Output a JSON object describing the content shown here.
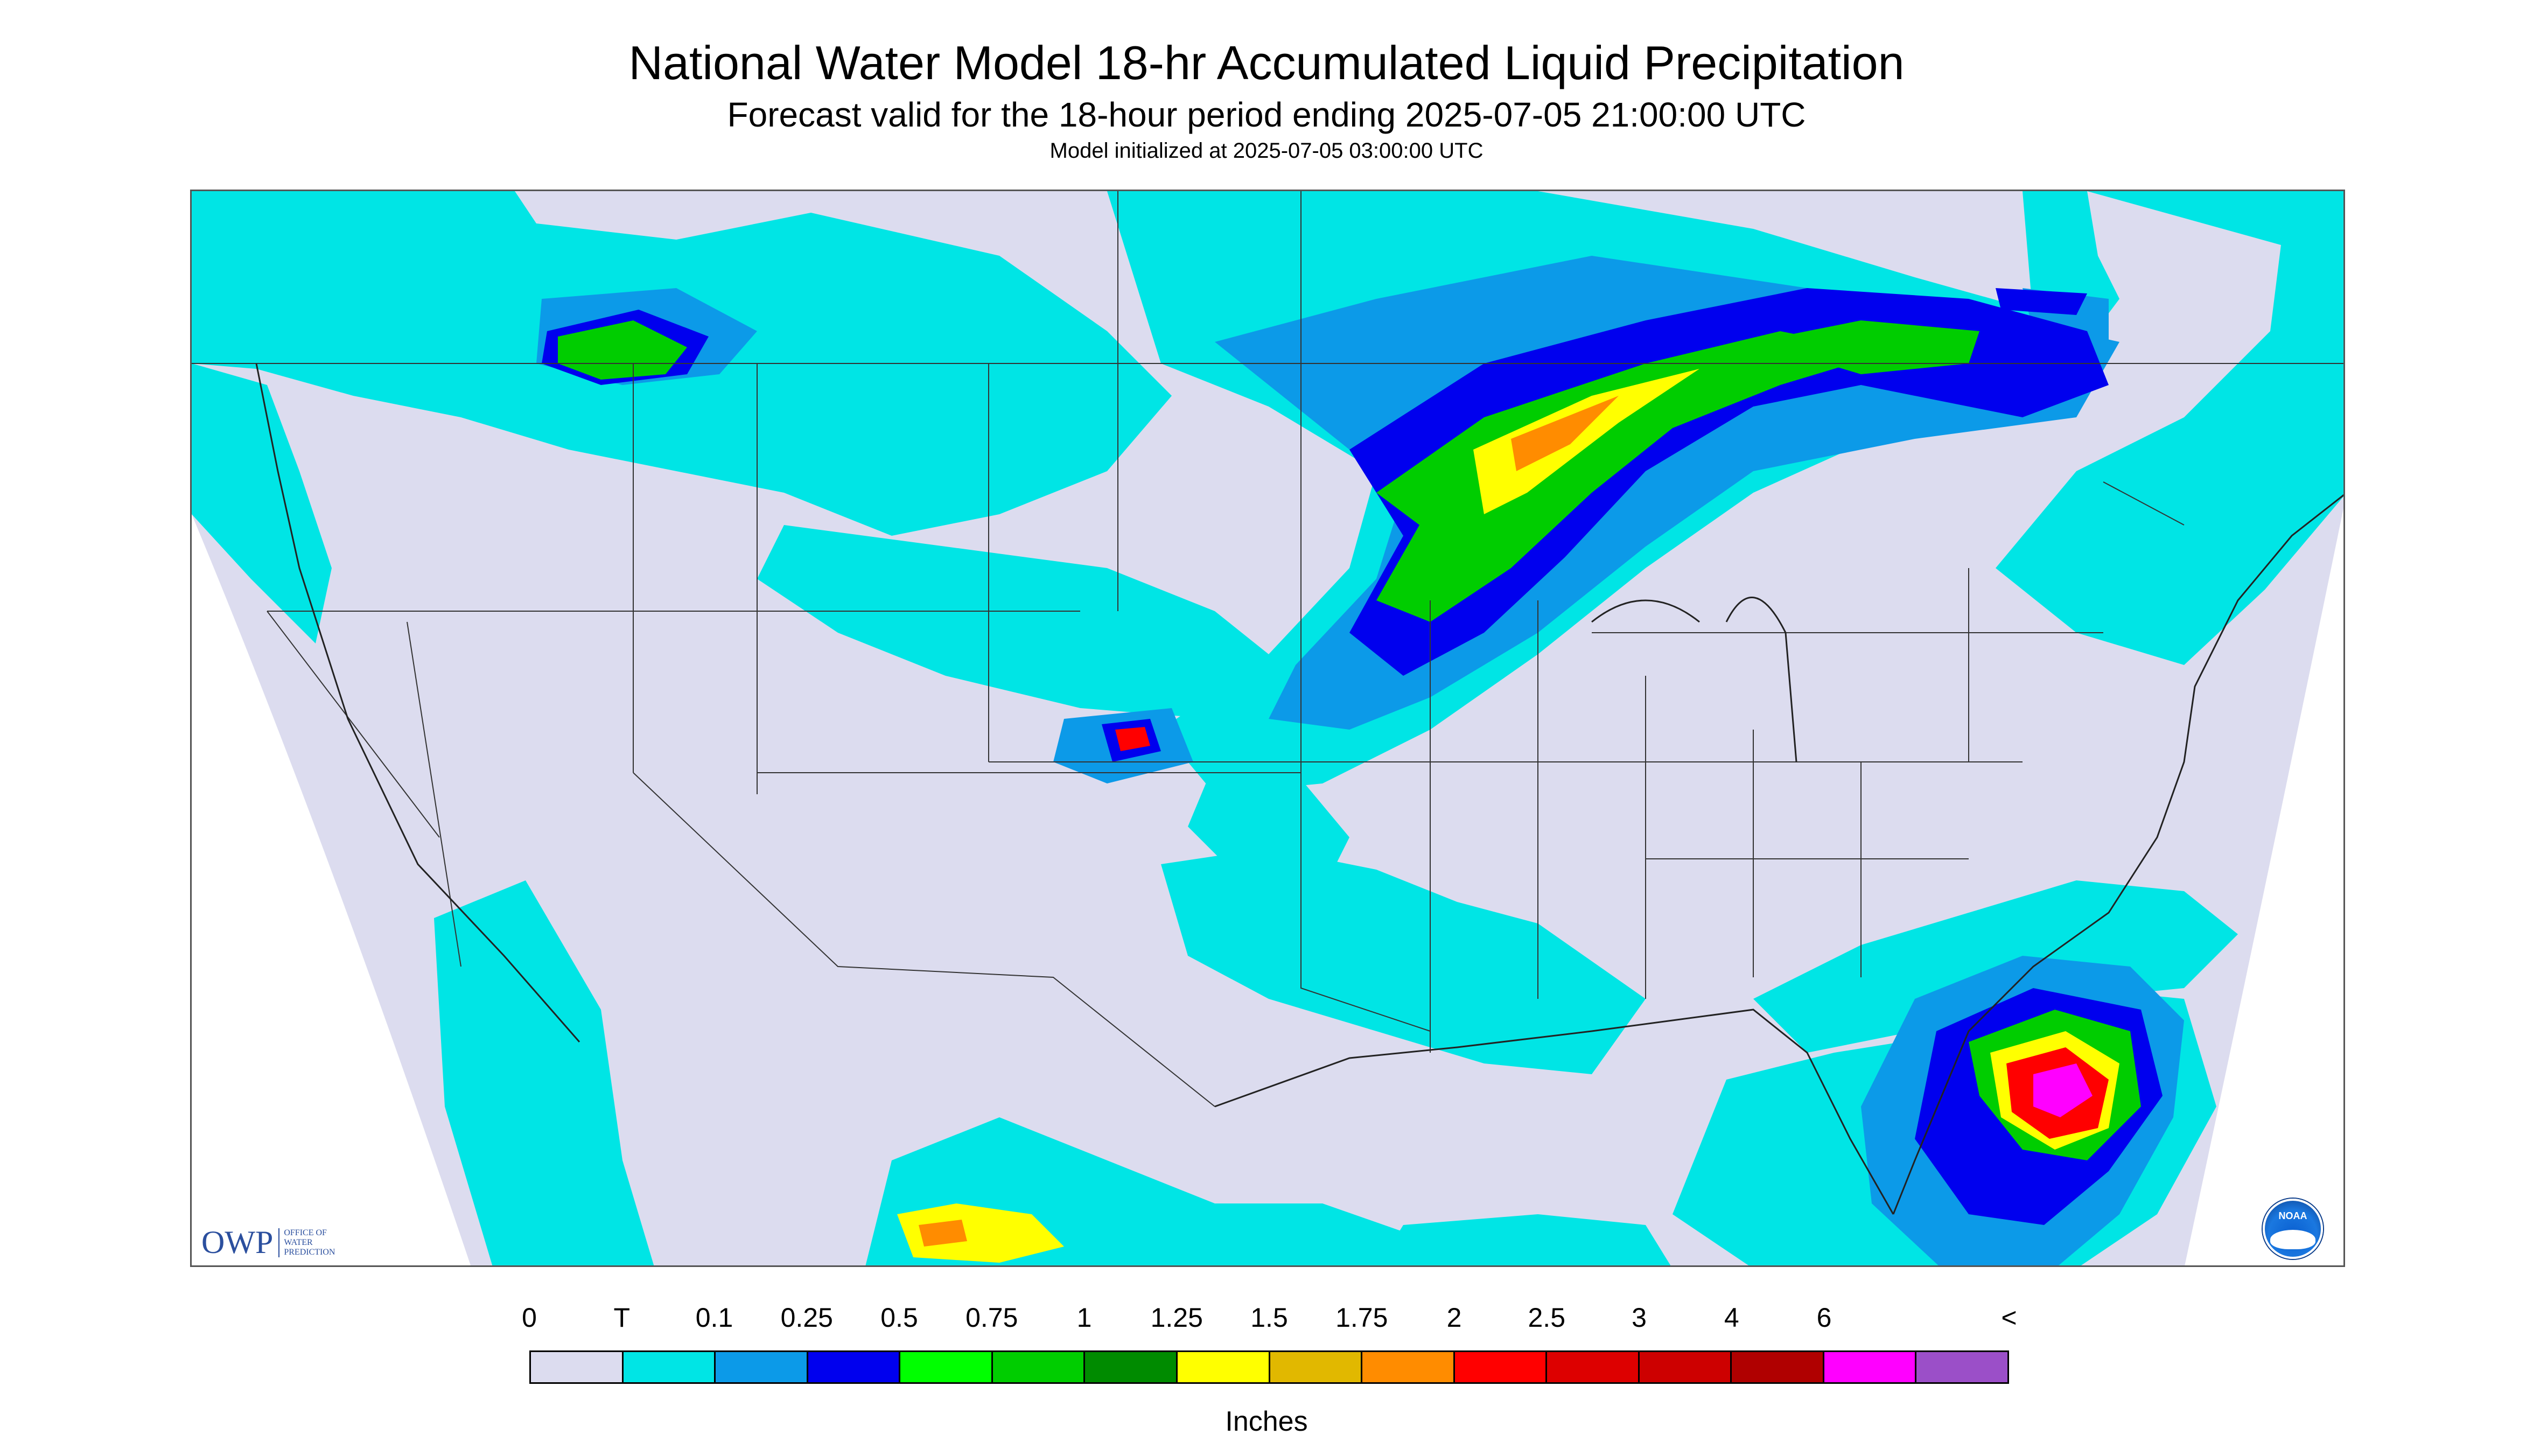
{
  "title": "National Water Model 18-hr Accumulated Liquid Precipitation",
  "subtitle": "Forecast valid for the 18-hour period ending 2025-07-05 21:00:00 UTC",
  "init_line": "Model initialized at 2025-07-05 03:00:00 UTC",
  "logos": {
    "owp_mark": "OWP",
    "owp_text": "OFFICE OF WATER PREDICTION",
    "noaa_text": "NOAA"
  },
  "legend": {
    "labels": [
      "0",
      "T",
      "0.1",
      "0.25",
      "0.5",
      "0.75",
      "1",
      "1.25",
      "1.5",
      "1.75",
      "2",
      "2.5",
      "3",
      "4",
      "6",
      "<"
    ],
    "colors": [
      "#dcdcef",
      "#00e5e5",
      "#0c9ae8",
      "#0000ee",
      "#00ff00",
      "#00cd00",
      "#008b00",
      "#ffff00",
      "#e1b800",
      "#ff8c00",
      "#ff0000",
      "#dd0000",
      "#cd0000",
      "#b00000",
      "#ff00ff",
      "#9b4fc8"
    ],
    "units": "Inches"
  },
  "map_colors": {
    "background": "#dcdcef",
    "state_lines": "#333333"
  }
}
